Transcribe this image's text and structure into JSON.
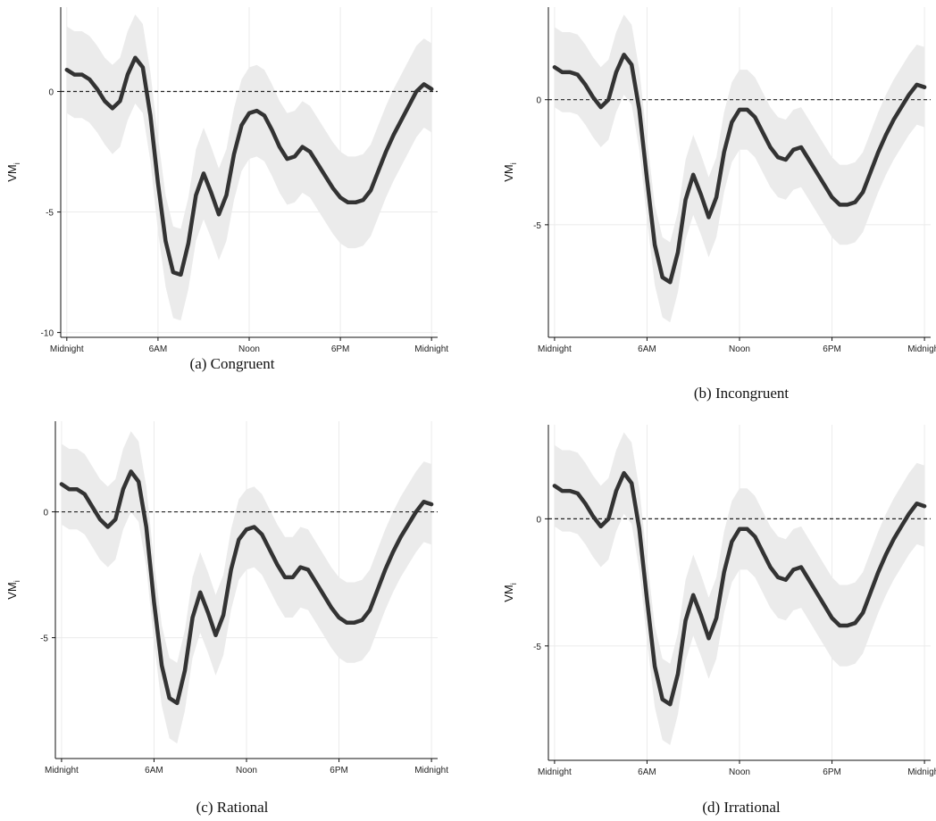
{
  "chart_data": [
    {
      "id": "a",
      "type": "line",
      "caption": "(a) Congruent",
      "ylabel": "VM",
      "ylabel_sub": "i",
      "x_ticks": [
        "Midnight",
        "6AM",
        "Noon",
        "6PM",
        "Midnight"
      ],
      "x_tick_hours": [
        0,
        6,
        12,
        18,
        24
      ],
      "y_ticks": [
        0,
        -5,
        -10
      ],
      "ylim": [
        -10.2,
        3.5
      ],
      "xlim": [
        -0.4,
        24.4
      ],
      "reference_line": 0,
      "series": [
        {
          "x": [
            0,
            0.5,
            1,
            1.5,
            2,
            2.5,
            3,
            3.5,
            4,
            4.5,
            5,
            5.5,
            6,
            6.5,
            7,
            7.5,
            8,
            8.5,
            9,
            9.5,
            10,
            10.5,
            11,
            11.5,
            12,
            12.5,
            13,
            13.5,
            14,
            14.5,
            15,
            15.5,
            16,
            16.5,
            17,
            17.5,
            18,
            18.5,
            19,
            19.5,
            20,
            20.5,
            21,
            21.5,
            22,
            22.5,
            23,
            23.5,
            24
          ],
          "y": [
            0.9,
            0.7,
            0.7,
            0.5,
            0.1,
            -0.4,
            -0.7,
            -0.4,
            0.7,
            1.4,
            1.0,
            -1.0,
            -3.8,
            -6.2,
            -7.5,
            -7.6,
            -6.3,
            -4.3,
            -3.4,
            -4.2,
            -5.1,
            -4.3,
            -2.6,
            -1.4,
            -0.9,
            -0.8,
            -1.0,
            -1.6,
            -2.3,
            -2.8,
            -2.7,
            -2.3,
            -2.5,
            -3.0,
            -3.5,
            -4.0,
            -4.4,
            -4.6,
            -4.6,
            -4.5,
            -4.1,
            -3.3,
            -2.5,
            -1.8,
            -1.2,
            -0.6,
            0.0,
            0.3,
            0.1
          ],
          "lower": [
            -0.9,
            -1.1,
            -1.1,
            -1.3,
            -1.7,
            -2.2,
            -2.6,
            -2.3,
            -1.2,
            -0.5,
            -0.9,
            -2.9,
            -5.8,
            -8.1,
            -9.4,
            -9.5,
            -8.2,
            -6.2,
            -5.3,
            -6.1,
            -7.0,
            -6.2,
            -4.5,
            -3.3,
            -2.8,
            -2.7,
            -2.9,
            -3.5,
            -4.2,
            -4.7,
            -4.6,
            -4.2,
            -4.4,
            -4.9,
            -5.4,
            -5.9,
            -6.3,
            -6.5,
            -6.5,
            -6.4,
            -6.0,
            -5.2,
            -4.4,
            -3.7,
            -3.1,
            -2.5,
            -1.9,
            -1.5,
            -1.7
          ],
          "upper": [
            2.7,
            2.5,
            2.5,
            2.3,
            1.9,
            1.4,
            1.1,
            1.4,
            2.5,
            3.2,
            2.8,
            0.8,
            -1.9,
            -4.3,
            -5.6,
            -5.7,
            -4.4,
            -2.4,
            -1.5,
            -2.3,
            -3.2,
            -2.4,
            -0.7,
            0.5,
            1.0,
            1.1,
            0.9,
            0.3,
            -0.4,
            -0.9,
            -0.8,
            -0.4,
            -0.6,
            -1.1,
            -1.6,
            -2.1,
            -2.5,
            -2.7,
            -2.7,
            -2.6,
            -2.2,
            -1.4,
            -0.6,
            0.1,
            0.7,
            1.3,
            1.9,
            2.2,
            2.0
          ]
        }
      ]
    },
    {
      "id": "b",
      "type": "line",
      "caption": "(b) Incongruent",
      "ylabel": "VM",
      "ylabel_sub": "i",
      "x_ticks": [
        "Midnight",
        "6AM",
        "Noon",
        "6PM",
        "Midnight"
      ],
      "x_tick_hours": [
        0,
        6,
        12,
        18,
        24
      ],
      "y_ticks": [
        0,
        -5
      ],
      "ylim": [
        -9.5,
        3.7
      ],
      "xlim": [
        -0.4,
        24.4
      ],
      "reference_line": 0,
      "series": [
        {
          "x": [
            0,
            0.5,
            1,
            1.5,
            2,
            2.5,
            3,
            3.5,
            4,
            4.5,
            5,
            5.5,
            6,
            6.5,
            7,
            7.5,
            8,
            8.5,
            9,
            9.5,
            10,
            10.5,
            11,
            11.5,
            12,
            12.5,
            13,
            13.5,
            14,
            14.5,
            15,
            15.5,
            16,
            16.5,
            17,
            17.5,
            18,
            18.5,
            19,
            19.5,
            20,
            20.5,
            21,
            21.5,
            22,
            22.5,
            23,
            23.5,
            24
          ],
          "y": [
            1.3,
            1.1,
            1.1,
            1.0,
            0.6,
            0.1,
            -0.3,
            0.0,
            1.1,
            1.8,
            1.4,
            -0.4,
            -3.2,
            -5.8,
            -7.1,
            -7.3,
            -6.1,
            -4.0,
            -3.0,
            -3.8,
            -4.7,
            -3.9,
            -2.1,
            -0.9,
            -0.4,
            -0.4,
            -0.7,
            -1.3,
            -1.9,
            -2.3,
            -2.4,
            -2.0,
            -1.9,
            -2.4,
            -2.9,
            -3.4,
            -3.9,
            -4.2,
            -4.2,
            -4.1,
            -3.7,
            -2.9,
            -2.1,
            -1.4,
            -0.8,
            -0.3,
            0.2,
            0.6,
            0.5
          ]
        }
      ],
      "lower_offset": -1.6,
      "upper_offset": 1.6
    },
    {
      "id": "c",
      "type": "line",
      "caption": "(c) Rational",
      "ylabel": "VM",
      "ylabel_sub": "i",
      "x_ticks": [
        "Midnight",
        "6AM",
        "Noon",
        "6PM",
        "Midnight"
      ],
      "x_tick_hours": [
        0,
        6,
        12,
        18,
        24
      ],
      "y_ticks": [
        0,
        -5
      ],
      "ylim": [
        -9.8,
        3.6
      ],
      "xlim": [
        -0.4,
        24.4
      ],
      "reference_line": 0,
      "series": [
        {
          "x": [
            0,
            0.5,
            1,
            1.5,
            2,
            2.5,
            3,
            3.5,
            4,
            4.5,
            5,
            5.5,
            6,
            6.5,
            7,
            7.5,
            8,
            8.5,
            9,
            9.5,
            10,
            10.5,
            11,
            11.5,
            12,
            12.5,
            13,
            13.5,
            14,
            14.5,
            15,
            15.5,
            16,
            16.5,
            17,
            17.5,
            18,
            18.5,
            19,
            19.5,
            20,
            20.5,
            21,
            21.5,
            22,
            22.5,
            23,
            23.5,
            24
          ],
          "y": [
            1.1,
            0.9,
            0.9,
            0.7,
            0.2,
            -0.3,
            -0.6,
            -0.3,
            0.9,
            1.6,
            1.2,
            -0.6,
            -3.6,
            -6.1,
            -7.4,
            -7.6,
            -6.3,
            -4.2,
            -3.2,
            -4.0,
            -4.9,
            -4.1,
            -2.3,
            -1.1,
            -0.7,
            -0.6,
            -0.9,
            -1.5,
            -2.1,
            -2.6,
            -2.6,
            -2.2,
            -2.3,
            -2.8,
            -3.3,
            -3.8,
            -4.2,
            -4.4,
            -4.4,
            -4.3,
            -3.9,
            -3.1,
            -2.3,
            -1.6,
            -1.0,
            -0.5,
            0.0,
            0.4,
            0.3
          ]
        }
      ],
      "lower_offset": -1.6,
      "upper_offset": 1.6
    },
    {
      "id": "d",
      "type": "line",
      "caption": "(d) Irrational",
      "ylabel": "VM",
      "ylabel_sub": "i",
      "x_ticks": [
        "Midnight",
        "6AM",
        "Noon",
        "6PM",
        "Midnight"
      ],
      "x_tick_hours": [
        0,
        6,
        12,
        18,
        24
      ],
      "y_ticks": [
        0,
        -5
      ],
      "ylim": [
        -9.5,
        3.7
      ],
      "xlim": [
        -0.4,
        24.4
      ],
      "reference_line": 0,
      "series": [
        {
          "x": [
            0,
            0.5,
            1,
            1.5,
            2,
            2.5,
            3,
            3.5,
            4,
            4.5,
            5,
            5.5,
            6,
            6.5,
            7,
            7.5,
            8,
            8.5,
            9,
            9.5,
            10,
            10.5,
            11,
            11.5,
            12,
            12.5,
            13,
            13.5,
            14,
            14.5,
            15,
            15.5,
            16,
            16.5,
            17,
            17.5,
            18,
            18.5,
            19,
            19.5,
            20,
            20.5,
            21,
            21.5,
            22,
            22.5,
            23,
            23.5,
            24
          ],
          "y": [
            1.3,
            1.1,
            1.1,
            1.0,
            0.6,
            0.1,
            -0.3,
            0.0,
            1.1,
            1.8,
            1.4,
            -0.4,
            -3.2,
            -5.8,
            -7.1,
            -7.3,
            -6.1,
            -4.0,
            -3.0,
            -3.8,
            -4.7,
            -3.9,
            -2.1,
            -0.9,
            -0.4,
            -0.4,
            -0.7,
            -1.3,
            -1.9,
            -2.3,
            -2.4,
            -2.0,
            -1.9,
            -2.4,
            -2.9,
            -3.4,
            -3.9,
            -4.2,
            -4.2,
            -4.1,
            -3.7,
            -2.9,
            -2.1,
            -1.4,
            -0.8,
            -0.3,
            0.2,
            0.6,
            0.5
          ]
        }
      ],
      "lower_offset": -1.6,
      "upper_offset": 1.6
    }
  ]
}
